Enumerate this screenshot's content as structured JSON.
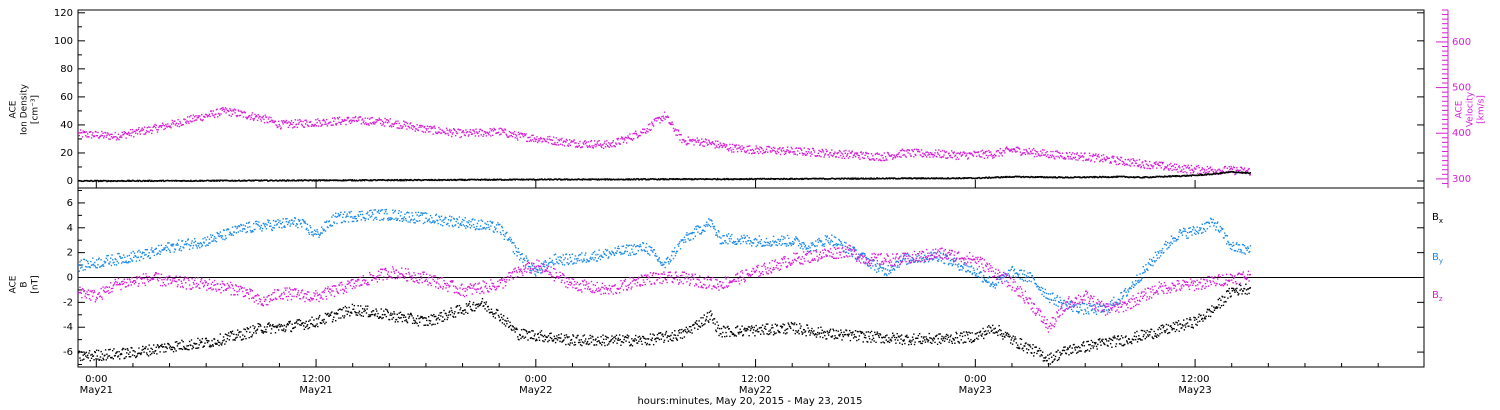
{
  "x_axis": {
    "title": "hours:minutes, May 20, 2015 - May 23, 2015",
    "ticks": [
      {
        "time": "0:00",
        "date": "May21"
      },
      {
        "time": "12:00",
        "date": "May21"
      },
      {
        "time": "0:00",
        "date": "May22"
      },
      {
        "time": "12:00",
        "date": "May22"
      },
      {
        "time": "0:00",
        "date": "May23"
      },
      {
        "time": "12:00",
        "date": "May23"
      }
    ]
  },
  "top_panel": {
    "left_label": [
      "ACE",
      "Ion Density",
      "[cm⁻³]"
    ],
    "right_label": [
      "ACE",
      "Velocity",
      "[km/s]"
    ],
    "left_ticks": [
      "0",
      "20",
      "40",
      "60",
      "80",
      "100",
      "120"
    ],
    "right_ticks": [
      "300",
      "400",
      "500",
      "600"
    ]
  },
  "bottom_panel": {
    "left_label": [
      "ACE",
      "B",
      "[nT]"
    ],
    "ticks": [
      "-6",
      "-4",
      "-2",
      "0",
      "2",
      "4",
      "6"
    ],
    "legend": [
      {
        "base": "B",
        "sub": "x",
        "color": "#000000"
      },
      {
        "base": "B",
        "sub": "y",
        "color": "#1a8ae6"
      },
      {
        "base": "B",
        "sub": "z",
        "color": "#d61ed6"
      }
    ]
  },
  "colors": {
    "density": "#000000",
    "velocity": "#d61ed6",
    "bx": "#000000",
    "by": "#1a8ae6",
    "bz": "#d61ed6"
  },
  "chart_data": [
    {
      "type": "scatter",
      "title": "",
      "xlabel": "hours:minutes, May 20, 2015 - May 23, 2015",
      "x_range_hours_from_may20_0000": [
        23.0,
        96.5
      ],
      "series": [
        {
          "name": "Ion Density",
          "axis": "left",
          "ylim": [
            -5,
            122
          ],
          "x_hours": [
            23,
            28,
            33,
            38,
            43,
            47,
            52,
            57,
            62,
            67,
            72,
            74,
            77,
            80,
            81,
            84,
            85,
            86,
            87
          ],
          "values": [
            0.5,
            0.6,
            0.8,
            1.0,
            1.2,
            1.5,
            1.6,
            1.8,
            2.0,
            2.3,
            2.5,
            3.5,
            3.0,
            3.5,
            3.0,
            4.5,
            5.5,
            7.0,
            6.0
          ]
        },
        {
          "name": "Velocity",
          "axis": "right",
          "ylim": [
            280,
            670
          ],
          "x_hours": [
            23,
            25,
            27,
            29,
            31,
            33,
            34,
            36,
            38,
            40,
            42,
            44,
            46,
            47,
            48,
            49,
            50,
            51,
            52,
            53,
            54,
            55,
            56,
            57,
            58,
            58.5,
            59,
            60,
            62,
            63,
            65,
            66,
            67,
            68,
            70,
            71,
            73,
            74,
            76,
            78,
            80,
            82,
            83,
            84,
            86,
            87
          ],
          "values": [
            400,
            395,
            410,
            430,
            450,
            435,
            420,
            425,
            430,
            425,
            410,
            400,
            405,
            395,
            390,
            385,
            380,
            378,
            376,
            390,
            410,
            440,
            385,
            383,
            375,
            370,
            368,
            365,
            362,
            360,
            355,
            352,
            350,
            358,
            356,
            353,
            356,
            365,
            355,
            350,
            340,
            330,
            325,
            322,
            320,
            318
          ]
        }
      ]
    },
    {
      "type": "scatter",
      "title": "",
      "xlabel": "hours:minutes, May 20, 2015 - May 23, 2015",
      "ylabel": "ACE B [nT]",
      "ylim": [
        -7.2,
        7.2
      ],
      "series": [
        {
          "name": "Bx",
          "x_hours": [
            23,
            26,
            28,
            30,
            32,
            33,
            34,
            36,
            38,
            40,
            42,
            44,
            45,
            46,
            47,
            48,
            50,
            52,
            54,
            56,
            57.5,
            58,
            60,
            62,
            64,
            66,
            68,
            70,
            72,
            73,
            74,
            75,
            76,
            77,
            78,
            79,
            80,
            82,
            84,
            85,
            86,
            87
          ],
          "values": [
            -6.3,
            -6.0,
            -5.5,
            -5.2,
            -4.5,
            -4.0,
            -4.0,
            -3.5,
            -2.5,
            -3.0,
            -3.5,
            -2.5,
            -2.0,
            -3.0,
            -4.5,
            -4.6,
            -5.0,
            -5.0,
            -5.0,
            -4.5,
            -3.0,
            -4.3,
            -4.2,
            -4.0,
            -4.5,
            -4.7,
            -4.9,
            -4.9,
            -4.7,
            -4.0,
            -5.0,
            -5.7,
            -6.5,
            -5.8,
            -5.5,
            -5.2,
            -5.0,
            -4.3,
            -3.5,
            -2.5,
            -1.0,
            -0.8
          ]
        },
        {
          "name": "By",
          "x_hours": [
            23,
            25,
            27,
            28,
            30,
            32,
            33,
            35,
            36,
            37,
            38,
            39,
            40,
            42,
            44,
            46,
            47,
            48,
            49,
            50,
            52,
            54,
            55,
            56,
            57.5,
            58,
            60,
            62,
            63,
            64,
            66,
            67,
            68,
            70,
            72,
            73,
            74,
            75,
            76,
            77,
            78,
            79,
            80,
            82,
            83,
            84,
            85,
            86,
            87
          ],
          "values": [
            1.0,
            1.5,
            2.0,
            2.5,
            3.0,
            4.0,
            4.2,
            4.5,
            3.5,
            4.8,
            5.0,
            5.1,
            5.1,
            4.8,
            4.5,
            4.0,
            2.0,
            0.5,
            1.5,
            1.5,
            2.0,
            2.5,
            1.0,
            3.0,
            4.5,
            3.2,
            3.0,
            3.0,
            2.5,
            3.2,
            1.5,
            0.5,
            1.5,
            1.8,
            0.5,
            -0.5,
            0.5,
            0.0,
            -1.5,
            -2.2,
            -2.5,
            -2.5,
            -1.5,
            2.0,
            3.5,
            3.8,
            4.5,
            2.5,
            2.2
          ]
        },
        {
          "name": "Bz",
          "x_hours": [
            23,
            24,
            25,
            27,
            28,
            30,
            32,
            33,
            34,
            36,
            38,
            40,
            42,
            44,
            46,
            47,
            48,
            50,
            52,
            54,
            56,
            58,
            60,
            62,
            64,
            65,
            66,
            68,
            70,
            72,
            73,
            74,
            75,
            76,
            77,
            78,
            79,
            80,
            82,
            84,
            86,
            87
          ],
          "values": [
            -1.0,
            -1.5,
            -0.5,
            0.0,
            -0.3,
            -0.5,
            -1.0,
            -2.0,
            -1.2,
            -1.5,
            -0.5,
            0.5,
            0.0,
            -1.0,
            -0.5,
            0.5,
            1.0,
            -0.5,
            -1.0,
            0.0,
            0.0,
            -0.5,
            0.5,
            1.5,
            2.0,
            2.2,
            1.5,
            1.5,
            2.0,
            1.5,
            0.5,
            -0.5,
            -2.0,
            -4.0,
            -2.0,
            -1.5,
            -2.5,
            -2.3,
            -0.8,
            -0.5,
            0.0,
            0.2
          ]
        }
      ]
    }
  ]
}
